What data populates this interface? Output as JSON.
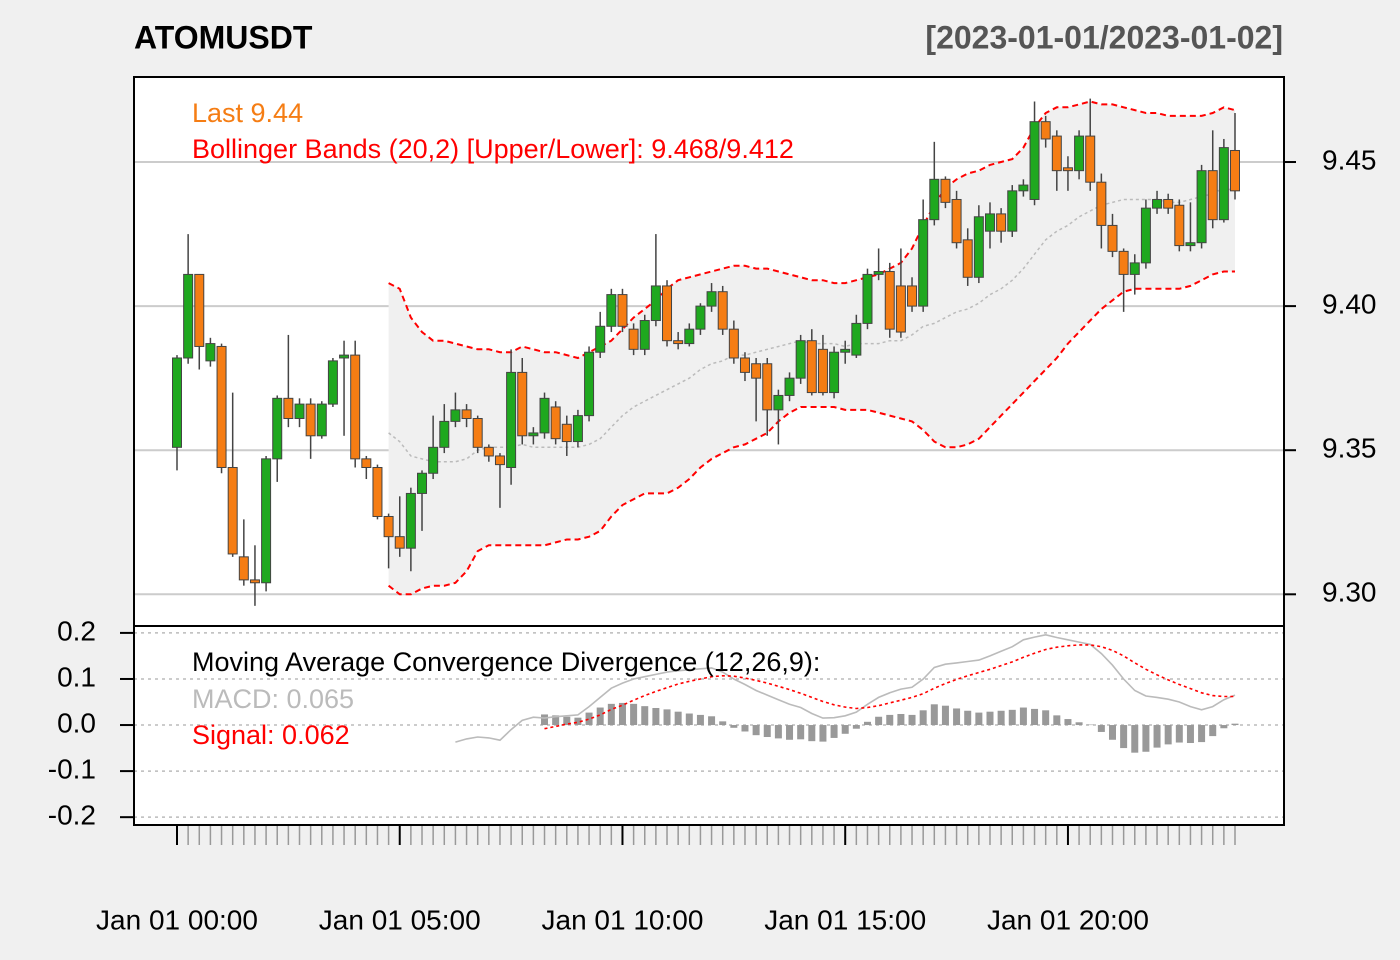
{
  "chart_data": [
    {
      "type": "candlestick",
      "title": "ATOMUSDT",
      "subtitle": "[2023-01-01/2023-01-02]",
      "categories": [
        "Jan 01 00:00",
        null,
        null,
        null,
        null,
        null,
        null,
        null,
        null,
        null,
        null,
        null,
        null,
        null,
        null,
        null,
        null,
        null,
        null,
        null,
        "Jan 01 05:00",
        null,
        null,
        null,
        null,
        null,
        null,
        null,
        null,
        null,
        null,
        null,
        null,
        null,
        null,
        null,
        null,
        null,
        null,
        null,
        "Jan 01 10:00",
        null,
        null,
        null,
        null,
        null,
        null,
        null,
        null,
        null,
        null,
        null,
        null,
        null,
        null,
        null,
        null,
        null,
        null,
        null,
        "Jan 01 15:00",
        null,
        null,
        null,
        null,
        null,
        null,
        null,
        null,
        null,
        null,
        null,
        null,
        null,
        null,
        null,
        null,
        null,
        null,
        null,
        "Jan 01 20:00",
        null,
        null,
        null,
        null,
        null,
        null,
        null,
        null,
        null,
        null,
        null,
        null,
        null,
        null,
        null
      ],
      "open": [
        9.351,
        9.382,
        9.411,
        9.381,
        9.386,
        9.344,
        9.313,
        9.305,
        9.304,
        9.347,
        9.368,
        9.361,
        9.366,
        9.355,
        9.366,
        9.382,
        9.383,
        9.347,
        9.344,
        9.327,
        9.32,
        9.316,
        9.335,
        9.342,
        9.351,
        9.36,
        9.364,
        9.361,
        9.351,
        9.348,
        9.344,
        9.377,
        9.355,
        9.356,
        9.365,
        9.359,
        9.353,
        9.362,
        9.384,
        9.393,
        9.404,
        9.392,
        9.385,
        9.395,
        9.407,
        9.388,
        9.387,
        9.392,
        9.4,
        9.405,
        9.392,
        9.382,
        9.38,
        9.38,
        9.364,
        9.369,
        9.375,
        9.388,
        9.385,
        9.37,
        9.384,
        9.383,
        9.394,
        9.411,
        9.412,
        9.407,
        9.407,
        9.4,
        9.43,
        9.444,
        9.437,
        9.423,
        9.41,
        9.426,
        9.432,
        9.426,
        9.44,
        9.437,
        9.464,
        9.459,
        9.448,
        9.447,
        9.459,
        9.443,
        9.428,
        9.419,
        9.411,
        9.415,
        9.434,
        9.437,
        9.435,
        9.421,
        9.422,
        9.447,
        9.43,
        9.454
      ],
      "high": [
        9.383,
        9.425,
        9.411,
        9.389,
        9.387,
        9.37,
        9.326,
        9.317,
        9.348,
        9.369,
        9.39,
        9.368,
        9.368,
        9.367,
        9.382,
        9.388,
        9.388,
        9.348,
        9.345,
        9.328,
        9.334,
        9.337,
        9.343,
        9.362,
        9.366,
        9.37,
        9.366,
        9.362,
        9.352,
        9.349,
        9.385,
        9.382,
        9.358,
        9.37,
        9.367,
        9.362,
        9.364,
        9.386,
        9.398,
        9.406,
        9.406,
        9.394,
        9.397,
        9.425,
        9.409,
        9.391,
        9.394,
        9.401,
        9.408,
        9.407,
        9.395,
        9.384,
        9.382,
        9.382,
        9.371,
        9.377,
        9.39,
        9.392,
        9.39,
        9.386,
        9.388,
        9.397,
        9.413,
        9.42,
        9.415,
        9.42,
        9.41,
        9.437,
        9.457,
        9.445,
        9.44,
        9.427,
        9.435,
        9.436,
        9.434,
        9.442,
        9.444,
        9.471,
        9.466,
        9.461,
        9.452,
        9.461,
        9.472,
        9.446,
        9.432,
        9.42,
        9.418,
        9.437,
        9.44,
        9.439,
        9.437,
        9.436,
        9.449,
        9.461,
        9.458,
        9.467
      ],
      "low": [
        9.343,
        9.38,
        9.378,
        9.379,
        9.342,
        9.313,
        9.303,
        9.296,
        9.301,
        9.339,
        9.358,
        9.358,
        9.347,
        9.354,
        9.365,
        9.355,
        9.344,
        9.34,
        9.326,
        9.309,
        9.313,
        9.308,
        9.322,
        9.34,
        9.349,
        9.358,
        9.358,
        9.349,
        9.346,
        9.33,
        9.338,
        9.352,
        9.352,
        9.354,
        9.352,
        9.348,
        9.351,
        9.36,
        9.382,
        9.391,
        9.391,
        9.383,
        9.383,
        9.393,
        9.386,
        9.385,
        9.386,
        9.39,
        9.398,
        9.39,
        9.38,
        9.374,
        9.36,
        9.355,
        9.352,
        9.367,
        9.373,
        9.369,
        9.369,
        9.368,
        9.38,
        9.382,
        9.392,
        9.409,
        9.389,
        9.389,
        9.398,
        9.398,
        9.428,
        9.434,
        9.42,
        9.407,
        9.408,
        9.42,
        9.422,
        9.424,
        9.438,
        9.435,
        9.455,
        9.44,
        9.44,
        9.444,
        9.44,
        9.42,
        9.417,
        9.398,
        9.404,
        9.413,
        9.432,
        9.432,
        9.419,
        9.419,
        9.42,
        9.427,
        9.429,
        9.437
      ],
      "close": [
        9.382,
        9.411,
        9.386,
        9.387,
        9.344,
        9.314,
        9.305,
        9.304,
        9.347,
        9.368,
        9.361,
        9.366,
        9.355,
        9.366,
        9.381,
        9.383,
        9.347,
        9.344,
        9.327,
        9.32,
        9.316,
        9.335,
        9.342,
        9.351,
        9.36,
        9.364,
        9.361,
        9.351,
        9.348,
        9.345,
        9.377,
        9.355,
        9.356,
        9.368,
        9.354,
        9.353,
        9.362,
        9.384,
        9.393,
        9.404,
        9.393,
        9.385,
        9.395,
        9.407,
        9.388,
        9.387,
        9.392,
        9.4,
        9.405,
        9.392,
        9.382,
        9.377,
        9.375,
        9.364,
        9.369,
        9.375,
        9.388,
        9.37,
        9.37,
        9.384,
        9.385,
        9.394,
        9.411,
        9.412,
        9.392,
        9.391,
        9.4,
        9.43,
        9.444,
        9.436,
        9.422,
        9.41,
        9.431,
        9.432,
        9.426,
        9.44,
        9.442,
        9.464,
        9.458,
        9.447,
        9.447,
        9.459,
        9.443,
        9.428,
        9.419,
        9.411,
        9.415,
        9.434,
        9.437,
        9.434,
        9.421,
        9.422,
        9.447,
        9.43,
        9.455,
        9.44
      ],
      "up_color": "#1fa81f",
      "down_color": "#f57d14",
      "bands": {
        "color": "#ff0000",
        "middle_color": "#bbbbbb",
        "fill": "#f0f0f0",
        "upper": [
          null,
          null,
          null,
          null,
          null,
          null,
          null,
          null,
          null,
          null,
          null,
          null,
          null,
          null,
          null,
          null,
          null,
          null,
          null,
          9.408,
          9.406,
          9.396,
          9.391,
          9.388,
          9.388,
          9.387,
          9.386,
          9.385,
          9.385,
          9.384,
          9.384,
          9.386,
          9.385,
          9.384,
          9.384,
          9.383,
          9.382,
          9.384,
          9.386,
          9.388,
          9.392,
          9.396,
          9.399,
          9.402,
          9.406,
          9.409,
          9.41,
          9.411,
          9.412,
          9.413,
          9.414,
          9.414,
          9.413,
          9.413,
          9.412,
          9.411,
          9.41,
          9.409,
          9.409,
          9.408,
          9.408,
          9.409,
          9.41,
          9.411,
          9.413,
          9.415,
          9.42,
          9.428,
          9.435,
          9.441,
          9.444,
          9.446,
          9.447,
          9.449,
          9.45,
          9.451,
          9.455,
          9.462,
          9.467,
          9.469,
          9.469,
          9.47,
          9.471,
          9.47,
          9.47,
          9.469,
          9.468,
          9.467,
          9.467,
          9.466,
          9.466,
          9.466,
          9.466,
          9.467,
          9.469,
          9.468
        ],
        "middle": [
          null,
          null,
          null,
          null,
          null,
          null,
          null,
          null,
          null,
          null,
          null,
          null,
          null,
          null,
          null,
          null,
          null,
          null,
          null,
          9.356,
          9.353,
          9.348,
          9.347,
          9.346,
          9.346,
          9.346,
          9.347,
          9.35,
          9.351,
          9.351,
          9.351,
          9.352,
          9.351,
          9.351,
          9.351,
          9.351,
          9.351,
          9.352,
          9.354,
          9.358,
          9.362,
          9.365,
          9.367,
          9.369,
          9.371,
          9.373,
          9.375,
          9.378,
          9.38,
          9.381,
          9.383,
          9.383,
          9.384,
          9.385,
          9.386,
          9.387,
          9.388,
          9.387,
          9.387,
          9.387,
          9.386,
          9.387,
          9.387,
          9.387,
          9.388,
          9.388,
          9.39,
          9.393,
          9.394,
          9.396,
          9.398,
          9.399,
          9.401,
          9.404,
          9.406,
          9.409,
          9.413,
          9.418,
          9.423,
          9.426,
          9.428,
          9.431,
          9.433,
          9.435,
          9.436,
          9.437,
          9.437,
          9.437,
          9.437,
          9.436,
          9.436,
          9.437,
          9.438,
          9.439,
          9.441,
          9.44
        ],
        "lower": [
          null,
          null,
          null,
          null,
          null,
          null,
          null,
          null,
          null,
          null,
          null,
          null,
          null,
          null,
          null,
          null,
          null,
          null,
          null,
          9.303,
          9.3,
          9.3,
          9.302,
          9.303,
          9.303,
          9.304,
          9.308,
          9.315,
          9.317,
          9.317,
          9.317,
          9.317,
          9.317,
          9.317,
          9.318,
          9.319,
          9.319,
          9.32,
          9.322,
          9.327,
          9.331,
          9.333,
          9.335,
          9.335,
          9.335,
          9.337,
          9.34,
          9.344,
          9.347,
          9.349,
          9.351,
          9.352,
          9.354,
          9.356,
          9.36,
          9.363,
          9.365,
          9.365,
          9.365,
          9.365,
          9.364,
          9.364,
          9.364,
          9.363,
          9.362,
          9.361,
          9.36,
          9.357,
          9.353,
          9.351,
          9.351,
          9.352,
          9.354,
          9.358,
          9.362,
          9.366,
          9.37,
          9.374,
          9.378,
          9.382,
          9.387,
          9.391,
          9.395,
          9.399,
          9.402,
          9.405,
          9.406,
          9.406,
          9.406,
          9.406,
          9.406,
          9.407,
          9.409,
          9.411,
          9.412,
          9.412
        ]
      },
      "annotations": [
        {
          "text": "Last 9.44",
          "color": "#f57d14"
        },
        {
          "text": "Bollinger Bands (20,2) [Upper/Lower]: 9.468/9.412",
          "color": "#ff0000"
        }
      ],
      "ylim": [
        9.289,
        9.4795
      ],
      "yticks": [
        {
          "value": 9.3,
          "label": "9.30"
        },
        9.35,
        {
          "value": 9.4,
          "label": "9.40"
        },
        9.45
      ],
      "grid": true
    },
    {
      "type": "macd",
      "title": "Moving Average Convergence Divergence (12,26,9):",
      "series": [
        {
          "name": "MACD: 0.065",
          "color": "#bbbbbb",
          "values": [
            null,
            null,
            null,
            null,
            null,
            null,
            null,
            null,
            null,
            null,
            null,
            null,
            null,
            null,
            null,
            null,
            null,
            null,
            null,
            null,
            null,
            null,
            null,
            null,
            null,
            -0.037,
            -0.03,
            -0.026,
            -0.028,
            -0.033,
            -0.01,
            0.01,
            0.017,
            0.015,
            0.018,
            0.02,
            0.022,
            0.04,
            0.06,
            0.08,
            0.091,
            0.1,
            0.105,
            0.11,
            0.115,
            0.118,
            0.12,
            0.122,
            0.124,
            0.115,
            0.1,
            0.088,
            0.075,
            0.065,
            0.055,
            0.045,
            0.038,
            0.025,
            0.015,
            0.016,
            0.02,
            0.028,
            0.045,
            0.06,
            0.07,
            0.078,
            0.082,
            0.1,
            0.125,
            0.132,
            0.135,
            0.138,
            0.141,
            0.15,
            0.16,
            0.17,
            0.185,
            0.191,
            0.196,
            0.19,
            0.185,
            0.18,
            0.175,
            0.155,
            0.13,
            0.1,
            0.075,
            0.063,
            0.06,
            0.056,
            0.05,
            0.04,
            0.033,
            0.04,
            0.055,
            0.065
          ]
        },
        {
          "name": "Signal: 0.062",
          "color": "#ff0000",
          "values": [
            null,
            null,
            null,
            null,
            null,
            null,
            null,
            null,
            null,
            null,
            null,
            null,
            null,
            null,
            null,
            null,
            null,
            null,
            null,
            null,
            null,
            null,
            null,
            null,
            null,
            null,
            null,
            null,
            null,
            null,
            null,
            null,
            null,
            -0.008,
            -0.003,
            0.002,
            0.006,
            0.013,
            0.022,
            0.034,
            0.043,
            0.054,
            0.064,
            0.073,
            0.081,
            0.089,
            0.095,
            0.1,
            0.105,
            0.107,
            0.106,
            0.102,
            0.097,
            0.091,
            0.084,
            0.077,
            0.069,
            0.06,
            0.051,
            0.044,
            0.039,
            0.036,
            0.038,
            0.042,
            0.048,
            0.054,
            0.06,
            0.068,
            0.08,
            0.09,
            0.099,
            0.107,
            0.114,
            0.121,
            0.129,
            0.137,
            0.147,
            0.156,
            0.164,
            0.169,
            0.172,
            0.174,
            0.174,
            0.17,
            0.162,
            0.15,
            0.135,
            0.121,
            0.109,
            0.098,
            0.088,
            0.079,
            0.07,
            0.064,
            0.062,
            0.062
          ]
        }
      ],
      "histogram": {
        "color": "#999999",
        "values": [
          null,
          null,
          null,
          null,
          null,
          null,
          null,
          null,
          null,
          null,
          null,
          null,
          null,
          null,
          null,
          null,
          null,
          null,
          null,
          null,
          null,
          null,
          null,
          null,
          null,
          null,
          null,
          null,
          null,
          null,
          null,
          null,
          null,
          0.023,
          0.021,
          0.018,
          0.016,
          0.027,
          0.038,
          0.046,
          0.048,
          0.046,
          0.041,
          0.037,
          0.034,
          0.029,
          0.025,
          0.022,
          0.019,
          0.008,
          -0.006,
          -0.014,
          -0.022,
          -0.026,
          -0.029,
          -0.032,
          -0.031,
          -0.035,
          -0.036,
          -0.028,
          -0.019,
          -0.008,
          0.007,
          0.018,
          0.022,
          0.024,
          0.022,
          0.032,
          0.045,
          0.042,
          0.036,
          0.031,
          0.027,
          0.029,
          0.031,
          0.033,
          0.038,
          0.035,
          0.032,
          0.021,
          0.013,
          0.006,
          0.001,
          -0.015,
          -0.032,
          -0.05,
          -0.06,
          -0.058,
          -0.049,
          -0.042,
          -0.038,
          -0.039,
          -0.037,
          -0.024,
          -0.007,
          0.003
        ]
      },
      "ylim": [
        -0.217,
        0.215
      ],
      "yticks": [
        0.2,
        0.1,
        {
          "value": 0,
          "label": "0.0"
        },
        -0.1,
        -0.2
      ],
      "grid": true
    }
  ]
}
